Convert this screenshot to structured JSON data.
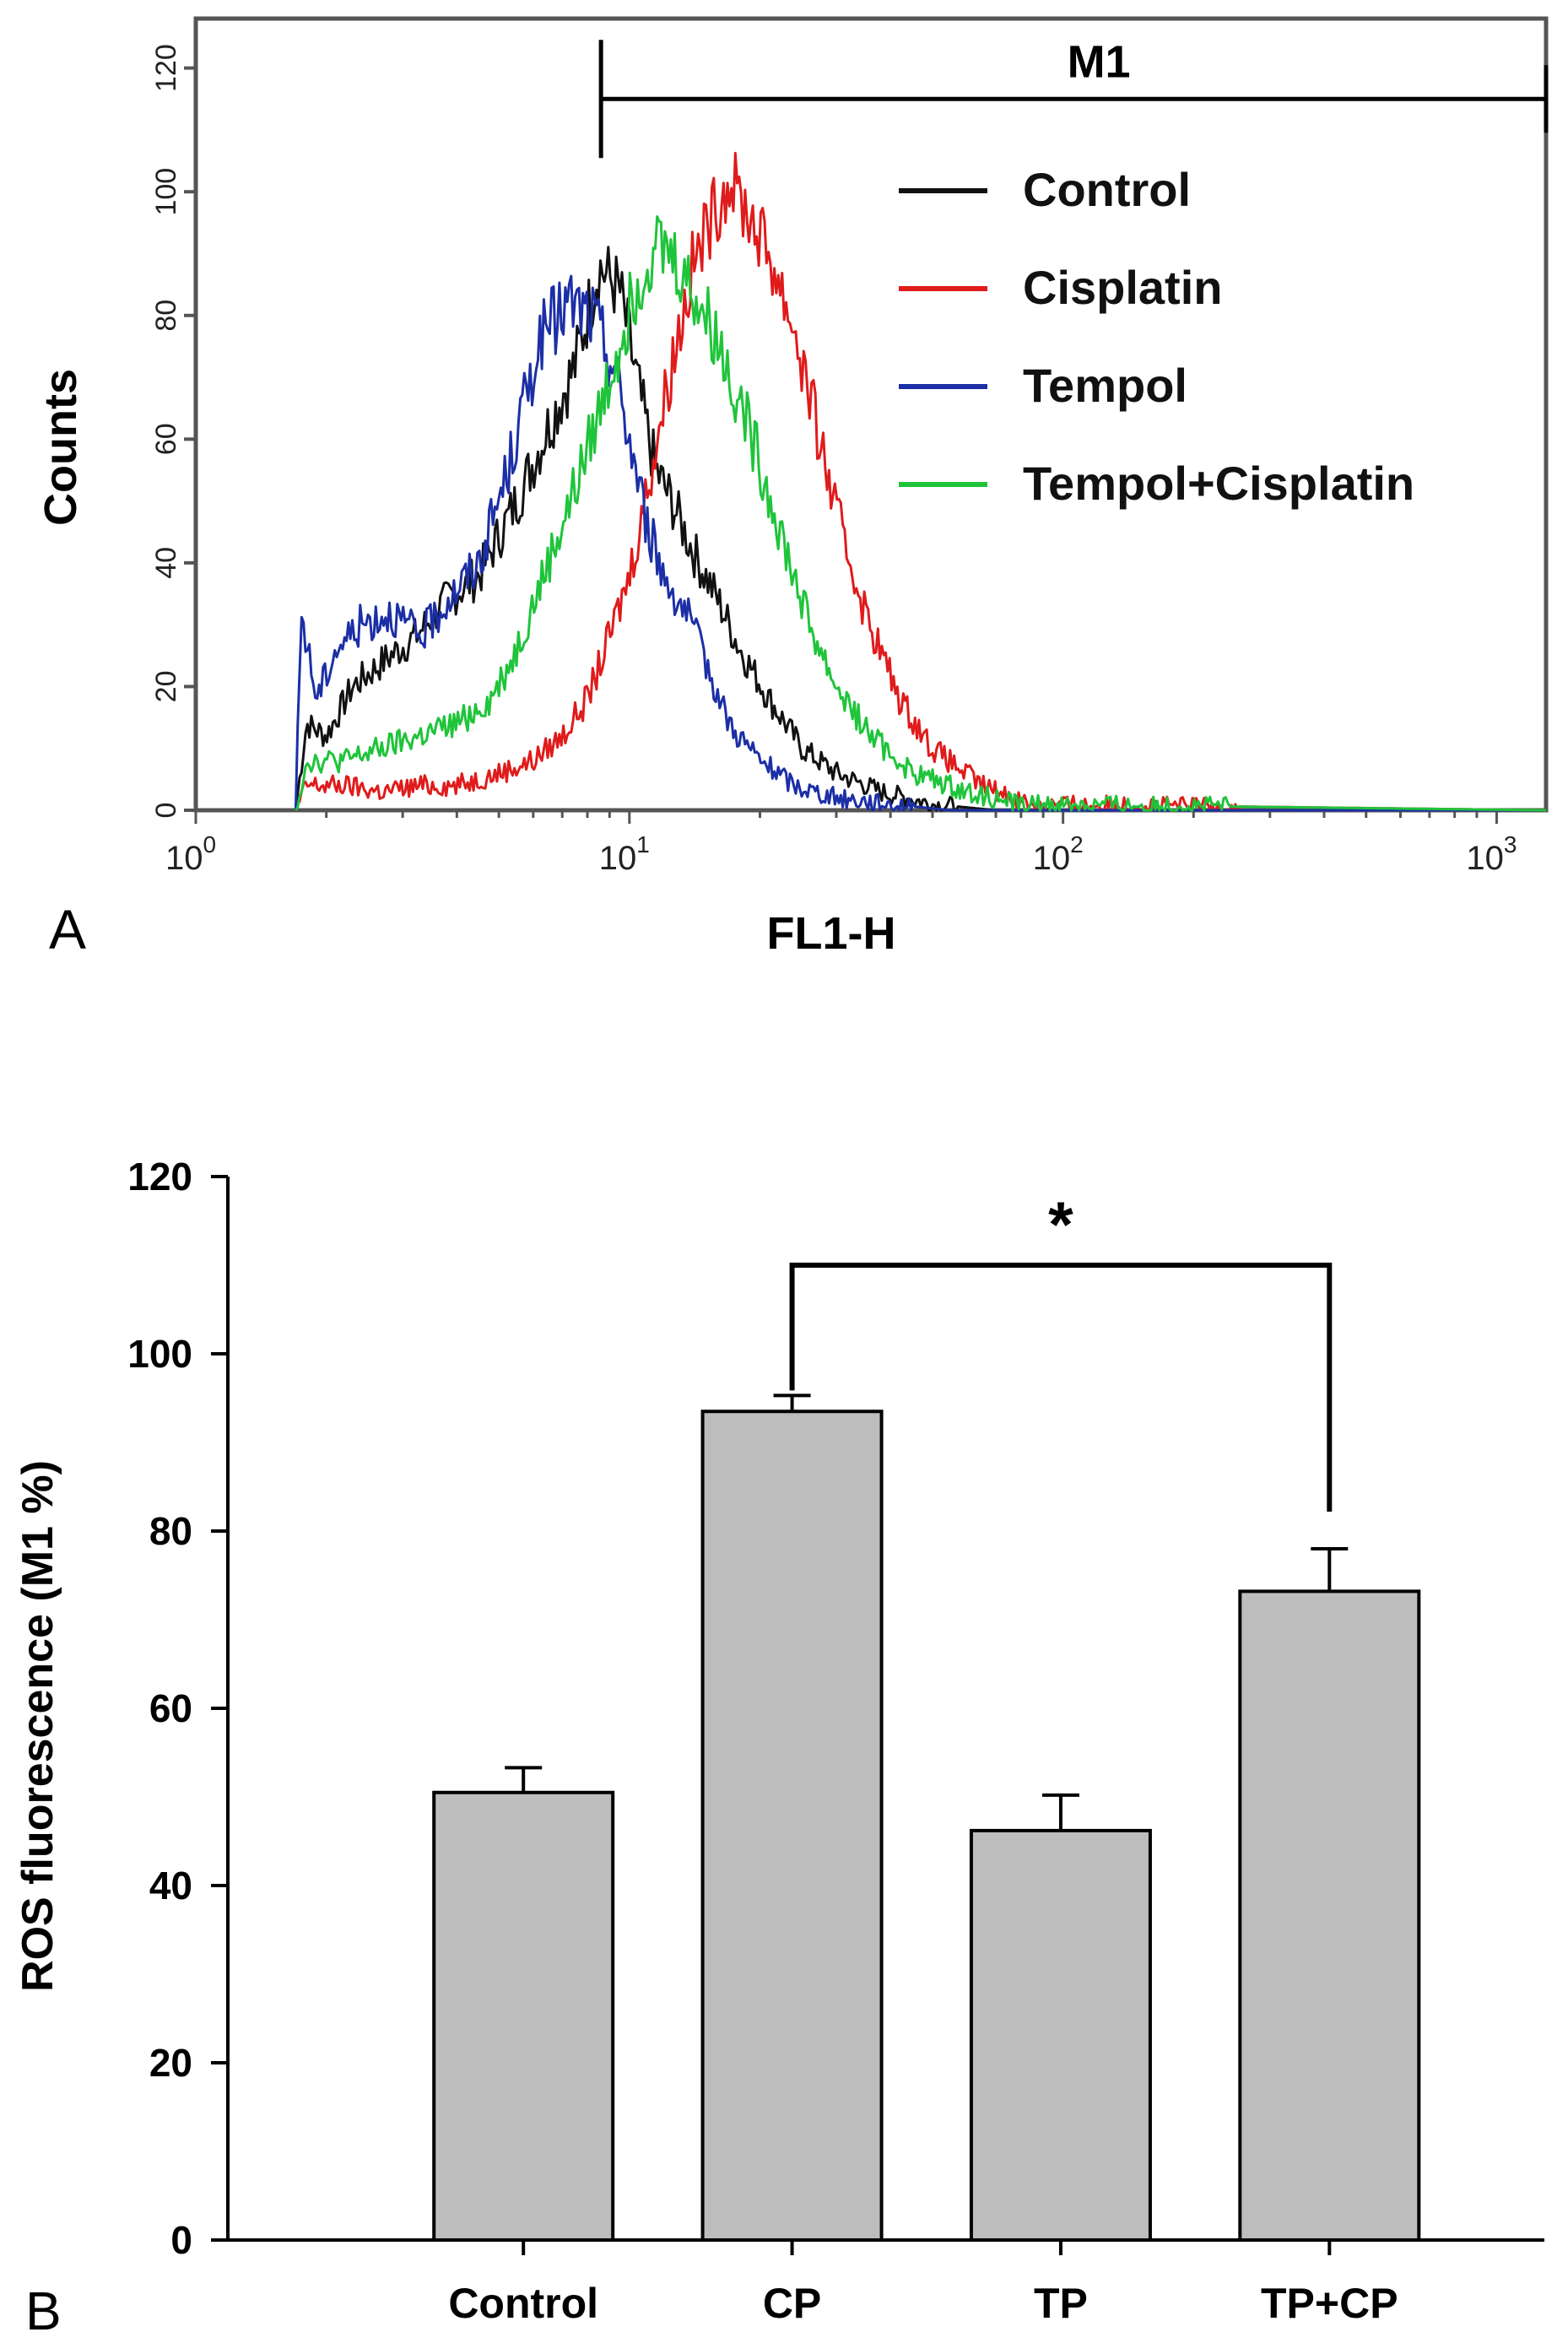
{
  "chart_data": [
    {
      "panel_label": "A",
      "type": "line",
      "xscale": "log",
      "xlabel": "FL1-H",
      "ylabel": "Counts",
      "xlim": [
        1,
        1300
      ],
      "ylim": [
        0,
        128
      ],
      "x_ticks": [
        {
          "base": "10",
          "exp": "0",
          "value": 1
        },
        {
          "base": "10",
          "exp": "1",
          "value": 10
        },
        {
          "base": "10",
          "exp": "2",
          "value": 100
        },
        {
          "base": "10",
          "exp": "3",
          "value": 1000
        }
      ],
      "y_ticks": [
        0,
        20,
        40,
        60,
        80,
        100,
        120
      ],
      "marker": {
        "label": "M1",
        "x_start": 8.6,
        "x_end": 1300,
        "y": 115
      },
      "legend": [
        "Control",
        "Cisplatin",
        "Tempol",
        "Tempol+Cisplatin"
      ],
      "series": [
        {
          "name": "Control",
          "color": "#111111",
          "x": [
            1.7,
            1.8,
            2.0,
            2.3,
            2.7,
            3.2,
            3.8,
            4.5,
            5.5,
            6.5,
            7.5,
            8.5,
            9.5,
            10.5,
            11.5,
            12.5,
            14,
            16,
            18,
            21,
            25,
            30,
            38,
            50,
            70,
            1300
          ],
          "y": [
            0,
            14,
            12,
            20,
            24,
            28,
            34,
            38,
            50,
            62,
            72,
            88,
            84,
            68,
            55,
            50,
            42,
            34,
            26,
            18,
            10,
            6,
            3,
            1,
            0,
            0
          ]
        },
        {
          "name": "Cisplatin",
          "color": "#e01b1b",
          "x": [
            1.7,
            1.8,
            2.2,
            2.7,
            3.3,
            4.0,
            5.0,
            6.0,
            7.0,
            8.0,
            9.0,
            10.0,
            11.0,
            12.5,
            14,
            15.5,
            17,
            19,
            21,
            24,
            27,
            30,
            35,
            42,
            50,
            65,
            85,
            1300
          ],
          "y": [
            0,
            4,
            4,
            3,
            4,
            4,
            6,
            8,
            12,
            18,
            28,
            38,
            52,
            72,
            88,
            96,
            102,
            96,
            90,
            78,
            62,
            48,
            32,
            18,
            10,
            4,
            1,
            0
          ]
        },
        {
          "name": "Tempol",
          "color": "#1c2fa6",
          "x": [
            1.7,
            1.75,
            1.9,
            2.1,
            2.4,
            2.8,
            3.3,
            3.8,
            4.5,
            5.3,
            6.2,
            7.2,
            8.2,
            9.2,
            10.0,
            11.0,
            12.0,
            13.5,
            15,
            17,
            20,
            24,
            30,
            40,
            55,
            1300
          ],
          "y": [
            0,
            32,
            18,
            26,
            30,
            32,
            28,
            34,
            40,
            56,
            76,
            82,
            80,
            72,
            60,
            46,
            38,
            32,
            24,
            14,
            8,
            4,
            2,
            1,
            0,
            0
          ]
        },
        {
          "name": "Tempol+Cisplatin",
          "color": "#1fc43a",
          "x": [
            1.7,
            1.8,
            2.2,
            2.7,
            3.3,
            4.0,
            4.8,
            5.5,
            6.5,
            7.5,
            8.5,
            9.5,
            10.5,
            11.5,
            12.5,
            14,
            16,
            18,
            20,
            23,
            26,
            30,
            36,
            45,
            60,
            80,
            1300
          ],
          "y": [
            0,
            8,
            8,
            10,
            12,
            14,
            18,
            26,
            40,
            52,
            64,
            76,
            86,
            92,
            90,
            84,
            76,
            66,
            56,
            42,
            30,
            20,
            12,
            6,
            3,
            1,
            0
          ]
        }
      ]
    },
    {
      "panel_label": "B",
      "type": "bar",
      "ylabel": "ROS fluorescence (M1 %)",
      "ylim": [
        0,
        120
      ],
      "y_ticks": [
        0,
        20,
        40,
        60,
        80,
        100,
        120
      ],
      "categories": [
        "Control",
        "CP",
        "TP",
        "TP+CP"
      ],
      "values": [
        50.5,
        93.5,
        46.2,
        73.2
      ],
      "errors": [
        2.8,
        1.8,
        4.0,
        4.8
      ],
      "bar_color": "#bdbdbd",
      "significance": {
        "from": "CP",
        "to": "TP+CP",
        "label": "*",
        "y": 110
      }
    }
  ]
}
